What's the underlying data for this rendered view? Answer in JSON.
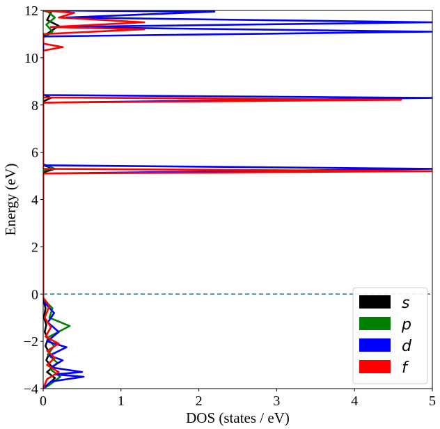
{
  "chart_data": {
    "type": "line",
    "orientation": "horizontal",
    "title": "",
    "xlabel": "DOS (states / eV)",
    "ylabel": "Energy (eV)",
    "xlim": [
      0,
      5
    ],
    "ylim": [
      -4,
      12
    ],
    "xticks": [
      "0",
      "1",
      "2",
      "3",
      "4",
      "5"
    ],
    "yticks": [
      "−4",
      "−2",
      "0",
      "2",
      "4",
      "6",
      "8",
      "10",
      "12"
    ],
    "grid": false,
    "fermi_level": 0,
    "legend": {
      "position": "bottom-right"
    },
    "series": [
      {
        "name": "s",
        "color": "#000000",
        "points": [
          {
            "dos": 0.0,
            "energy": -4.0
          },
          {
            "dos": 0.05,
            "energy": -3.9
          },
          {
            "dos": 0.15,
            "energy": -3.55
          },
          {
            "dos": 0.05,
            "energy": -3.3
          },
          {
            "dos": 0.12,
            "energy": -3.1
          },
          {
            "dos": 0.04,
            "energy": -2.8
          },
          {
            "dos": 0.08,
            "energy": -2.5
          },
          {
            "dos": 0.03,
            "energy": -2.2
          },
          {
            "dos": 0.06,
            "energy": -1.9
          },
          {
            "dos": 0.02,
            "energy": -1.6
          },
          {
            "dos": 0.04,
            "energy": -1.3
          },
          {
            "dos": 0.01,
            "energy": -1.0
          },
          {
            "dos": 0.03,
            "energy": -0.6
          },
          {
            "dos": 0.0,
            "energy": -0.2
          },
          {
            "dos": 0.0,
            "energy": 5.15
          },
          {
            "dos": 0.15,
            "energy": 5.3
          },
          {
            "dos": 0.0,
            "energy": 5.45
          },
          {
            "dos": 0.0,
            "energy": 8.15
          },
          {
            "dos": 0.1,
            "energy": 8.3
          },
          {
            "dos": 0.0,
            "energy": 8.45
          },
          {
            "dos": 0.0,
            "energy": 10.9
          },
          {
            "dos": 0.2,
            "energy": 11.35
          },
          {
            "dos": 0.05,
            "energy": 11.6
          },
          {
            "dos": 0.1,
            "energy": 11.9
          },
          {
            "dos": 0.0,
            "energy": 12.0
          }
        ]
      },
      {
        "name": "p",
        "color": "#008000",
        "points": [
          {
            "dos": 0.0,
            "energy": -4.0
          },
          {
            "dos": 0.08,
            "energy": -3.85
          },
          {
            "dos": 0.22,
            "energy": -3.5
          },
          {
            "dos": 0.1,
            "energy": -3.2
          },
          {
            "dos": 0.18,
            "energy": -2.9
          },
          {
            "dos": 0.06,
            "energy": -2.55
          },
          {
            "dos": 0.14,
            "energy": -2.2
          },
          {
            "dos": 0.05,
            "energy": -1.85
          },
          {
            "dos": 0.34,
            "energy": -1.35
          },
          {
            "dos": 0.08,
            "energy": -1.0
          },
          {
            "dos": 0.12,
            "energy": -0.6
          },
          {
            "dos": 0.0,
            "energy": -0.2
          },
          {
            "dos": 0.0,
            "energy": 5.2
          },
          {
            "dos": 0.12,
            "energy": 5.35
          },
          {
            "dos": 0.0,
            "energy": 5.5
          },
          {
            "dos": 0.0,
            "energy": 10.85
          },
          {
            "dos": 0.12,
            "energy": 11.1
          },
          {
            "dos": 0.04,
            "energy": 11.4
          },
          {
            "dos": 0.15,
            "energy": 11.7
          },
          {
            "dos": 0.06,
            "energy": 11.95
          },
          {
            "dos": 0.0,
            "energy": 12.0
          }
        ]
      },
      {
        "name": "d",
        "color": "#0000ff",
        "points": [
          {
            "dos": 0.0,
            "energy": -4.0
          },
          {
            "dos": 0.1,
            "energy": -3.7
          },
          {
            "dos": 0.52,
            "energy": -3.5
          },
          {
            "dos": 0.15,
            "energy": -3.4
          },
          {
            "dos": 0.5,
            "energy": -3.3
          },
          {
            "dos": 0.1,
            "energy": -3.1
          },
          {
            "dos": 0.25,
            "energy": -2.8
          },
          {
            "dos": 0.08,
            "energy": -2.6
          },
          {
            "dos": 0.3,
            "energy": -2.25
          },
          {
            "dos": 0.05,
            "energy": -2.0
          },
          {
            "dos": 0.2,
            "energy": -1.6
          },
          {
            "dos": 0.06,
            "energy": -1.2
          },
          {
            "dos": 0.14,
            "energy": -0.8
          },
          {
            "dos": 0.0,
            "energy": -0.3
          },
          {
            "dos": 0.0,
            "energy": 5.1
          },
          {
            "dos": 5.0,
            "energy": 5.3
          },
          {
            "dos": 0.0,
            "energy": 5.45
          },
          {
            "dos": 0.0,
            "energy": 8.1
          },
          {
            "dos": 5.0,
            "energy": 8.3
          },
          {
            "dos": 0.0,
            "energy": 8.42
          },
          {
            "dos": 0.0,
            "energy": 10.9
          },
          {
            "dos": 5.0,
            "energy": 11.1
          },
          {
            "dos": 0.1,
            "energy": 11.3
          },
          {
            "dos": 5.0,
            "energy": 11.5
          },
          {
            "dos": 0.3,
            "energy": 11.7
          },
          {
            "dos": 2.2,
            "energy": 11.95
          },
          {
            "dos": 0.0,
            "energy": 12.0
          }
        ]
      },
      {
        "name": "f",
        "color": "#ff0000",
        "points": [
          {
            "dos": 0.0,
            "energy": -4.0
          },
          {
            "dos": 0.05,
            "energy": -3.6
          },
          {
            "dos": 0.2,
            "energy": -3.3
          },
          {
            "dos": 0.05,
            "energy": -3.0
          },
          {
            "dos": 0.15,
            "energy": -2.7
          },
          {
            "dos": 0.05,
            "energy": -2.4
          },
          {
            "dos": 0.2,
            "energy": -2.1
          },
          {
            "dos": 0.03,
            "energy": -1.8
          },
          {
            "dos": 0.1,
            "energy": -1.4
          },
          {
            "dos": 0.02,
            "energy": -1.0
          },
          {
            "dos": 0.08,
            "energy": -0.5
          },
          {
            "dos": 0.0,
            "energy": -0.15
          },
          {
            "dos": 0.0,
            "energy": 5.1
          },
          {
            "dos": 5.0,
            "energy": 5.2
          },
          {
            "dos": 0.0,
            "energy": 5.3
          },
          {
            "dos": 0.0,
            "energy": 8.1
          },
          {
            "dos": 4.6,
            "energy": 8.22
          },
          {
            "dos": 0.0,
            "energy": 8.32
          },
          {
            "dos": 0.0,
            "energy": 10.3
          },
          {
            "dos": 0.25,
            "energy": 10.45
          },
          {
            "dos": 0.0,
            "energy": 10.6
          },
          {
            "dos": 0.0,
            "energy": 11.0
          },
          {
            "dos": 1.3,
            "energy": 11.2
          },
          {
            "dos": 0.1,
            "energy": 11.3
          },
          {
            "dos": 1.3,
            "energy": 11.5
          },
          {
            "dos": 0.2,
            "energy": 11.7
          },
          {
            "dos": 0.4,
            "energy": 11.9
          },
          {
            "dos": 0.0,
            "energy": 12.0
          }
        ]
      }
    ]
  }
}
